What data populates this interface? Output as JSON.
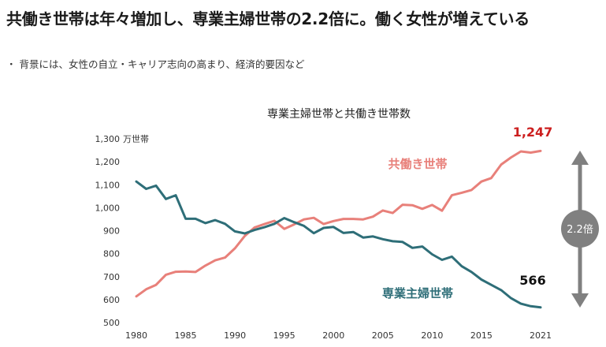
{
  "headline": "共働き世帯は年々増加し、専業主婦世帯の2.2倍に。働く女性が増えている",
  "bullet": {
    "marker": "・",
    "text": "背景には、女性の自立・キャリア志向の高まり、経済的要因など"
  },
  "colors": {
    "dual_income": "#E8807A",
    "housewife": "#2E6E78",
    "highlight_value": "#CC1F1F",
    "arrow": "#808080"
  },
  "chart_data": {
    "type": "line",
    "title": "専業主婦世帯と共働き世帯数",
    "ylabel": "万世帯",
    "ylim": [
      500,
      1300
    ],
    "yticks": [
      "500",
      "600",
      "700",
      "800",
      "900",
      "1,000",
      "1,100",
      "1,200",
      "1,300"
    ],
    "xlim": [
      1980,
      2021
    ],
    "xticks": [
      "1980",
      "1985",
      "1990",
      "1995",
      "2000",
      "2005",
      "2010",
      "2015",
      "2021"
    ],
    "grid": false,
    "x": [
      1980,
      1981,
      1982,
      1983,
      1984,
      1985,
      1986,
      1987,
      1988,
      1989,
      1990,
      1991,
      1992,
      1993,
      1994,
      1995,
      1996,
      1997,
      1998,
      1999,
      2000,
      2001,
      2002,
      2003,
      2004,
      2005,
      2006,
      2007,
      2008,
      2009,
      2010,
      2011,
      2012,
      2013,
      2014,
      2015,
      2016,
      2017,
      2018,
      2019,
      2020,
      2021
    ],
    "series": [
      {
        "name": "共働き世帯",
        "end_label": "1,247",
        "values": [
          614,
          645,
          664,
          708,
          721,
          722,
          720,
          748,
          771,
          783,
          823,
          877,
          914,
          929,
          943,
          908,
          927,
          949,
          956,
          929,
          942,
          951,
          951,
          949,
          961,
          988,
          977,
          1013,
          1011,
          995,
          1012,
          987,
          1054,
          1065,
          1077,
          1114,
          1129,
          1188,
          1219,
          1245,
          1240,
          1247
        ]
      },
      {
        "name": "専業主婦世帯",
        "end_label": "566",
        "values": [
          1114,
          1082,
          1096,
          1038,
          1054,
          952,
          952,
          933,
          946,
          930,
          897,
          888,
          903,
          915,
          930,
          955,
          937,
          921,
          889,
          912,
          916,
          890,
          894,
          870,
          875,
          863,
          854,
          851,
          825,
          831,
          797,
          773,
          787,
          745,
          720,
          687,
          664,
          641,
          606,
          582,
          571,
          566
        ]
      }
    ],
    "annotation": "2.2倍"
  }
}
